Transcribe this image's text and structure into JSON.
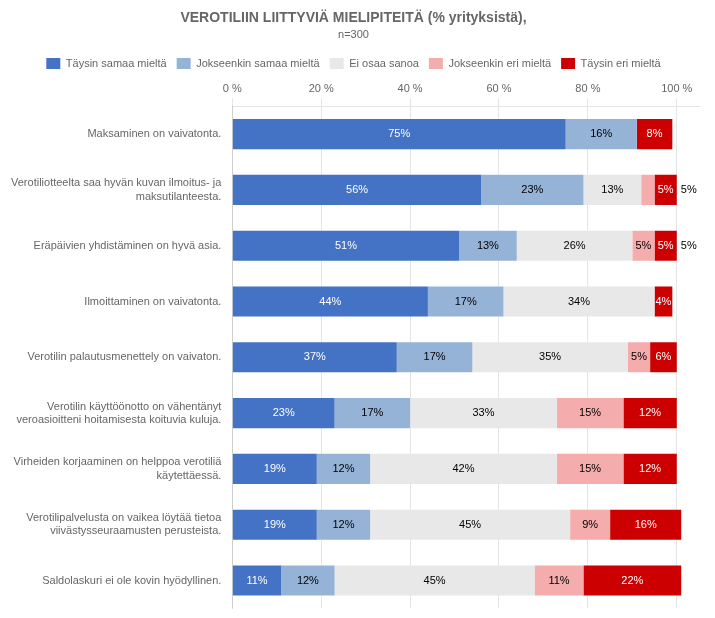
{
  "chart_data": {
    "type": "bar",
    "orientation": "horizontal",
    "stacked": true,
    "title": "VEROTILIIN LIITTYVIÄ MIELIPITEITÄ (% yrityksistä),",
    "subtitle": "n=300",
    "categories": [
      "Maksaminen on vaivatonta.",
      "Verotiliotteelta saa hyvän kuvan ilmoitus- ja\nmaksutilanteesta.",
      "Eräpäivien yhdistäminen on hyvä asia.",
      "Ilmoittaminen on vaivatonta.",
      "Verotilin palautusmenettely on vaivaton.",
      "Verotilin käyttöönotto on vähentänyt\nveroasioitteni hoitamisesta koituvia kuluja.",
      "Virheiden korjaaminen on helppoa verotiliä\nkäytettäessä.",
      "Verotilipalvelusta on vaikea löytää tietoa\nviivästysseuraamusten perusteista.",
      "Saldolaskuri ei ole kovin hyödyllinen."
    ],
    "series": [
      {
        "name": "Täysin samaa mieltä",
        "color": "#4472C4",
        "values": [
          75,
          56,
          51,
          44,
          37,
          23,
          19,
          19,
          11
        ],
        "value_labels": [
          "75%",
          "56%",
          "51%",
          "44%",
          "37%",
          "23%",
          "19%",
          "19%",
          "11%"
        ]
      },
      {
        "name": "Jokseenkin samaa mieltä",
        "color": "#95B3D7",
        "values": [
          16,
          23,
          13,
          17,
          17,
          17,
          12,
          12,
          12
        ],
        "value_labels": [
          "16%",
          "23%",
          "13%",
          "17%",
          "17%",
          "17%",
          "12%",
          "12%",
          "12%"
        ]
      },
      {
        "name": "Ei osaa sanoa",
        "color": "#E8E8E8",
        "values": [
          0,
          13,
          26,
          34,
          35,
          33,
          42,
          45,
          45
        ],
        "value_labels": [
          null,
          "13%",
          "26%",
          "34%",
          "35%",
          "33%",
          "42%",
          "45%",
          "45%"
        ]
      },
      {
        "name": "Jokseenkin eri mieltä",
        "color": "#F4ACAC",
        "values": [
          0,
          3,
          5,
          0,
          5,
          15,
          15,
          9,
          11
        ],
        "value_labels": [
          null,
          null,
          "5%",
          null,
          "5%",
          "15%",
          "15%",
          "9%",
          "11%"
        ]
      },
      {
        "name": "Täysin eri mieltä",
        "color": "#CC0000",
        "values": [
          8,
          5,
          5,
          4,
          6,
          12,
          12,
          16,
          22
        ],
        "value_labels": [
          "8%",
          "5%",
          "5%",
          "4%",
          "6%",
          "12%",
          "12%",
          "16%",
          "22%"
        ]
      }
    ],
    "annotations": [
      {
        "text": "5%",
        "category": "Verotiliotteelta saa hyvän kuvan ilmoitus- ja\nmaksutilanteesta.",
        "series": "Täysin eri mieltä"
      },
      {
        "text": "5%",
        "category": "Eräpäivien yhdistäminen on hyvä asia.",
        "series": "Täysin eri mieltä"
      }
    ],
    "xlim": [
      0,
      105
    ],
    "xticks": [
      {
        "value": 0,
        "label": "0 %"
      },
      {
        "value": 20,
        "label": "20 %"
      },
      {
        "value": 40,
        "label": "40 %"
      },
      {
        "value": 60,
        "label": "60 %"
      },
      {
        "value": 80,
        "label": "80 %"
      },
      {
        "value": 100,
        "label": "100 %"
      }
    ],
    "grid": true,
    "data_labels": true,
    "legend": "top"
  }
}
